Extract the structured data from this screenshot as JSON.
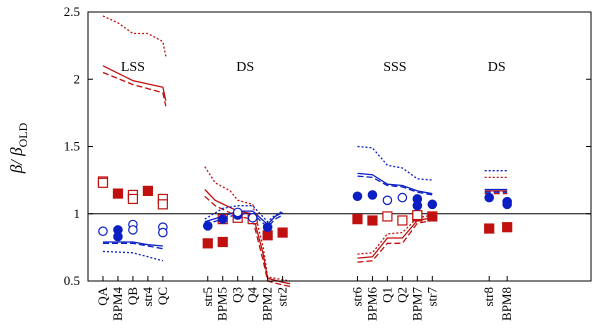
{
  "chart_data": {
    "type": "scatter",
    "y_axis": {
      "label_main": "β/ β",
      "label_sub": "OLD",
      "ylim": [
        0.5,
        2.5
      ],
      "ticks": [
        {
          "value": 0.5,
          "label": "0.5"
        },
        {
          "value": 1.0,
          "label": "1"
        },
        {
          "value": 1.5,
          "label": "1.5"
        },
        {
          "value": 2.0,
          "label": "2"
        },
        {
          "value": 2.5,
          "label": "2.5"
        }
      ]
    },
    "xlim": [
      0,
      33.6
    ],
    "reference_line": 1.0,
    "categories": [
      {
        "x": 1,
        "label": "QA"
      },
      {
        "x": 2,
        "label": "BPM4"
      },
      {
        "x": 3,
        "label": "QB"
      },
      {
        "x": 4,
        "label": "str4"
      },
      {
        "x": 5,
        "label": "QC"
      },
      {
        "x": 8,
        "label": "str5"
      },
      {
        "x": 9,
        "label": "BPM5"
      },
      {
        "x": 10,
        "label": "Q3"
      },
      {
        "x": 11,
        "label": "Q4"
      },
      {
        "x": 12,
        "label": "BPM2"
      },
      {
        "x": 13,
        "label": "str2"
      },
      {
        "x": 18,
        "label": "str6"
      },
      {
        "x": 19,
        "label": "BPM6"
      },
      {
        "x": 20,
        "label": "Q1"
      },
      {
        "x": 21,
        "label": "Q2"
      },
      {
        "x": 22,
        "label": "BPM7"
      },
      {
        "x": 23,
        "label": "str7"
      },
      {
        "x": 26.8,
        "label": "str8"
      },
      {
        "x": 28,
        "label": "BPM8"
      }
    ],
    "region_labels": [
      {
        "text": "LSS",
        "x": 3.0,
        "y": 2.1
      },
      {
        "text": "DS",
        "x": 10.5,
        "y": 2.1
      },
      {
        "text": "SSS",
        "x": 20.5,
        "y": 2.1
      },
      {
        "text": "DS",
        "x": 27.3,
        "y": 2.1
      }
    ],
    "series": [
      {
        "color": "#c0100f",
        "marker": "square-filled",
        "points": [
          [
            2,
            1.15
          ],
          [
            4,
            1.17
          ],
          [
            8,
            0.78
          ],
          [
            9,
            0.79
          ],
          [
            12,
            0.84
          ],
          [
            13,
            0.86
          ],
          [
            18,
            0.96
          ],
          [
            19,
            0.95
          ],
          [
            22,
            0.98
          ],
          [
            23,
            0.98
          ],
          [
            26.8,
            0.89
          ],
          [
            28,
            0.9
          ]
        ]
      },
      {
        "color": "#c0100f",
        "marker": "square-open",
        "points": [
          [
            1,
            1.24
          ],
          [
            1,
            1.23
          ],
          [
            3,
            1.14
          ],
          [
            3,
            1.11
          ],
          [
            5,
            1.11
          ],
          [
            5,
            1.07
          ],
          [
            9,
            0.96
          ],
          [
            10,
            0.97
          ],
          [
            11,
            0.96
          ],
          [
            20,
            0.98
          ],
          [
            21,
            0.95
          ],
          [
            22,
            0.99
          ]
        ]
      },
      {
        "color": "#0a1fc4",
        "marker": "circle-filled",
        "points": [
          [
            2,
            0.88
          ],
          [
            2,
            0.83
          ],
          [
            8,
            0.91
          ],
          [
            9,
            0.96
          ],
          [
            10,
            0.99
          ],
          [
            12,
            0.9
          ],
          [
            18,
            1.13
          ],
          [
            19,
            1.14
          ],
          [
            22,
            1.11
          ],
          [
            22,
            1.06
          ],
          [
            23,
            1.07
          ],
          [
            26.8,
            1.12
          ],
          [
            28,
            1.09
          ],
          [
            28,
            1.07
          ]
        ]
      },
      {
        "color": "#0a1fc4",
        "marker": "circle-open",
        "points": [
          [
            1,
            0.87
          ],
          [
            3,
            0.92
          ],
          [
            3,
            0.88
          ],
          [
            5,
            0.9
          ],
          [
            5,
            0.86
          ],
          [
            10,
            1.01
          ],
          [
            11,
            0.97
          ],
          [
            20,
            1.1
          ],
          [
            21,
            1.12
          ]
        ]
      }
    ],
    "lines": [
      {
        "color": "#c0100f",
        "style": "solid",
        "segments": [
          [
            [
              1,
              2.1
            ],
            [
              3,
              1.99
            ],
            [
              5,
              1.94
            ],
            [
              5.2,
              1.84
            ]
          ],
          [
            [
              7.8,
              1.18
            ],
            [
              8.5,
              1.1
            ],
            [
              10,
              1.02
            ],
            [
              11,
              1.0
            ],
            [
              11.7,
              0.7
            ],
            [
              12,
              0.52
            ],
            [
              13,
              0.49
            ],
            [
              13.5,
              0.48
            ]
          ],
          [
            [
              18,
              0.67
            ],
            [
              19,
              0.68
            ],
            [
              20,
              0.82
            ],
            [
              21,
              0.82
            ],
            [
              22,
              0.95
            ],
            [
              23,
              0.97
            ]
          ],
          [
            [
              26.5,
              1.17
            ],
            [
              28,
              1.17
            ]
          ]
        ]
      },
      {
        "color": "#c0100f",
        "style": "dashed",
        "segments": [
          [
            [
              1,
              2.05
            ],
            [
              3,
              1.96
            ],
            [
              5,
              1.9
            ],
            [
              5.2,
              1.8
            ]
          ],
          [
            [
              7.8,
              1.13
            ],
            [
              8.5,
              1.06
            ],
            [
              10,
              0.98
            ],
            [
              11,
              0.96
            ],
            [
              11.7,
              0.65
            ],
            [
              12,
              0.5
            ],
            [
              13,
              0.47
            ],
            [
              13.5,
              0.46
            ]
          ],
          [
            [
              18,
              0.64
            ],
            [
              19,
              0.65
            ],
            [
              20,
              0.78
            ],
            [
              21,
              0.78
            ],
            [
              22,
              0.93
            ],
            [
              23,
              0.95
            ]
          ],
          [
            [
              26.5,
              1.15
            ],
            [
              28,
              1.15
            ]
          ]
        ]
      },
      {
        "color": "#c0100f",
        "style": "dotted",
        "segments": [
          [
            [
              1,
              2.47
            ],
            [
              2,
              2.42
            ],
            [
              3,
              2.34
            ],
            [
              4,
              2.34
            ],
            [
              5,
              2.28
            ],
            [
              5.2,
              2.17
            ]
          ],
          [
            [
              7.8,
              1.35
            ],
            [
              8.5,
              1.23
            ],
            [
              9.5,
              1.17
            ],
            [
              10,
              1.1
            ],
            [
              11,
              1.07
            ],
            [
              11.7,
              0.75
            ],
            [
              12,
              0.53
            ],
            [
              13,
              0.51
            ],
            [
              13.5,
              0.5
            ]
          ],
          [
            [
              18,
              0.7
            ],
            [
              19,
              0.71
            ],
            [
              20,
              0.85
            ],
            [
              21,
              0.86
            ],
            [
              22,
              0.97
            ],
            [
              23,
              0.99
            ]
          ],
          [
            [
              26.5,
              1.27
            ],
            [
              28,
              1.27
            ]
          ]
        ]
      },
      {
        "color": "#0a1fc4",
        "style": "solid",
        "segments": [
          [
            [
              1,
              0.79
            ],
            [
              3,
              0.79
            ],
            [
              4,
              0.77
            ],
            [
              5,
              0.76
            ]
          ],
          [
            [
              7.8,
              0.94
            ],
            [
              9,
              0.98
            ],
            [
              10,
              1.02
            ],
            [
              11,
              1.02
            ],
            [
              12,
              0.92
            ],
            [
              12.5,
              0.98
            ],
            [
              13,
              1.01
            ]
          ],
          [
            [
              18,
              1.3
            ],
            [
              19,
              1.29
            ],
            [
              20,
              1.22
            ],
            [
              21,
              1.21
            ],
            [
              22,
              1.17
            ],
            [
              23,
              1.15
            ]
          ],
          [
            [
              26.5,
              1.18
            ],
            [
              28,
              1.18
            ]
          ]
        ]
      },
      {
        "color": "#0a1fc4",
        "style": "dashed",
        "segments": [
          [
            [
              1,
              0.78
            ],
            [
              3,
              0.78
            ],
            [
              4,
              0.76
            ],
            [
              5,
              0.74
            ]
          ],
          [
            [
              7.8,
              0.92
            ],
            [
              9,
              0.96
            ],
            [
              10,
              1.0
            ],
            [
              11,
              1.0
            ],
            [
              12,
              0.9
            ],
            [
              12.5,
              0.96
            ],
            [
              13,
              0.99
            ]
          ],
          [
            [
              18,
              1.28
            ],
            [
              19,
              1.27
            ],
            [
              20,
              1.21
            ],
            [
              21,
              1.2
            ],
            [
              22,
              1.16
            ],
            [
              23,
              1.14
            ]
          ],
          [
            [
              26.5,
              1.16
            ],
            [
              28,
              1.16
            ]
          ]
        ]
      },
      {
        "color": "#0a1fc4",
        "style": "dotted",
        "segments": [
          [
            [
              1,
              0.72
            ],
            [
              3,
              0.71
            ],
            [
              4,
              0.68
            ],
            [
              5,
              0.65
            ]
          ],
          [
            [
              7.8,
              0.96
            ],
            [
              9,
              1.04
            ],
            [
              10,
              1.06
            ],
            [
              11,
              1.06
            ],
            [
              12,
              0.94
            ],
            [
              12.5,
              0.99
            ],
            [
              13,
              1.02
            ]
          ],
          [
            [
              18,
              1.5
            ],
            [
              19,
              1.49
            ],
            [
              20,
              1.36
            ],
            [
              21,
              1.34
            ],
            [
              22,
              1.26
            ],
            [
              23,
              1.25
            ]
          ],
          [
            [
              26.5,
              1.32
            ],
            [
              28,
              1.32
            ]
          ]
        ]
      }
    ]
  }
}
